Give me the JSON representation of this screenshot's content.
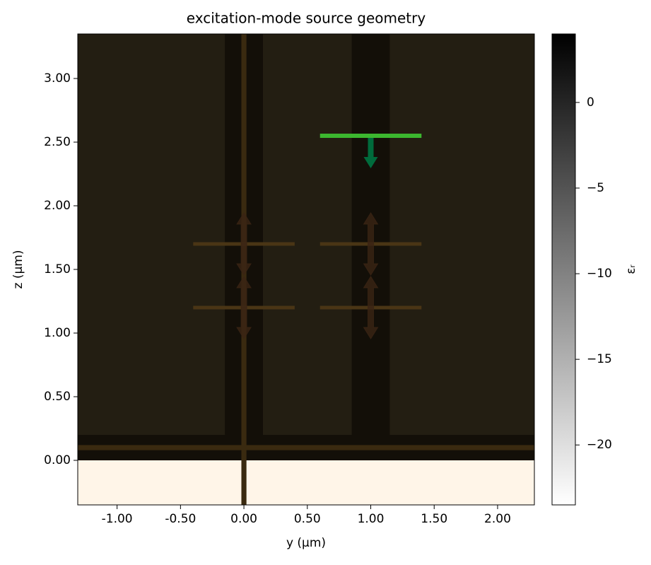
{
  "chart_data": {
    "type": "geometry",
    "title": "excitation-mode source geometry",
    "x_label": "y (µm)",
    "y_label": "z (µm)",
    "xlim": [
      -1.31,
      2.29
    ],
    "ylim": [
      -0.35,
      3.35
    ],
    "xticks": [
      {
        "value": -1,
        "label": "-1.00"
      },
      {
        "value": -0.5,
        "label": "-0.50"
      },
      {
        "value": 0,
        "label": "0.00"
      },
      {
        "value": 0.5,
        "label": "0.50"
      },
      {
        "value": 1,
        "label": "1.00"
      },
      {
        "value": 1.5,
        "label": "1.50"
      },
      {
        "value": 2,
        "label": "2.00"
      }
    ],
    "yticks": [
      {
        "value": 0,
        "label": "0.00"
      },
      {
        "value": 0.5,
        "label": "0.50"
      },
      {
        "value": 1,
        "label": "1.00"
      },
      {
        "value": 1.5,
        "label": "1.50"
      },
      {
        "value": 2,
        "label": "2.00"
      },
      {
        "value": 2.5,
        "label": "2.50"
      },
      {
        "value": 3,
        "label": "3.00"
      }
    ],
    "structures": [
      {
        "y": [
          -1.31,
          2.29
        ],
        "z": [
          0,
          3.35
        ],
        "color": "#231e12"
      },
      {
        "y": [
          -1.31,
          2.29
        ],
        "z": [
          -0.35,
          0
        ],
        "color": "#fff5e8"
      },
      {
        "y": [
          -0.15,
          0.15
        ],
        "z": [
          0,
          3.35
        ],
        "color": "#130f08"
      },
      {
        "y": [
          0.85,
          1.15
        ],
        "z": [
          0,
          3.35
        ],
        "color": "#130f08"
      },
      {
        "y": [
          -1.31,
          2.29
        ],
        "z": [
          0,
          0.2
        ],
        "color": "#130f08"
      },
      {
        "y": [
          -0.02,
          0.02
        ],
        "z": [
          -0.35,
          3.35
        ],
        "color": "#3a2a10"
      },
      {
        "y": [
          -1.31,
          2.29
        ],
        "z": [
          0.08,
          0.12
        ],
        "color": "#3a2a10"
      }
    ],
    "monitors": [
      {
        "y": [
          -0.4,
          0.4
        ],
        "z": 1.7
      },
      {
        "y": [
          0.6,
          1.4
        ],
        "z": 1.7
      },
      {
        "y": [
          -0.4,
          0.4
        ],
        "z": 1.2
      },
      {
        "y": [
          0.6,
          1.4
        ],
        "z": 1.2
      }
    ],
    "monitor_color": "#4a3515",
    "sources": [
      {
        "y": [
          0.6,
          1.4
        ],
        "z": 2.55
      }
    ],
    "source_color": "#3cb72f",
    "arrow_color": "#006b3c",
    "colorbar_label": "εᵣ",
    "clim": [
      -23.5,
      4.0
    ],
    "cticks": [
      0,
      {
        "value": -5,
        "label": "−5"
      },
      {
        "value": -10,
        "label": "−10"
      },
      {
        "value": -15,
        "label": "−15"
      },
      {
        "value": -20,
        "label": "−20"
      }
    ]
  }
}
